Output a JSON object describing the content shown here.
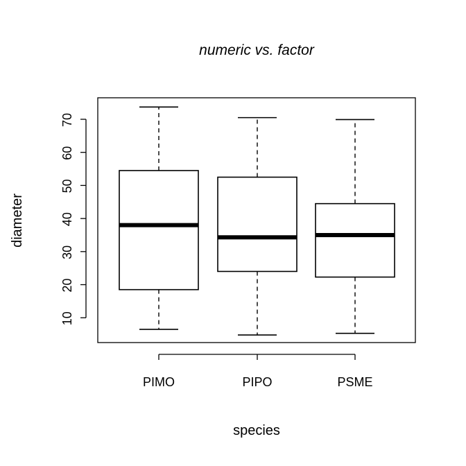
{
  "chart_data": {
    "type": "boxplot",
    "title": "numeric vs. factor",
    "xlabel": "species",
    "ylabel": "diameter",
    "categories": [
      "PIMO",
      "PIPO",
      "PSME"
    ],
    "boxes": [
      {
        "label": "PIMO",
        "min": 6.5,
        "q1": 18.5,
        "median": 38.0,
        "q3": 54.5,
        "max": 73.7
      },
      {
        "label": "PIPO",
        "min": 4.8,
        "q1": 24.0,
        "median": 34.3,
        "q3": 52.5,
        "max": 70.5
      },
      {
        "label": "PSME",
        "min": 5.3,
        "q1": 22.3,
        "median": 35.0,
        "q3": 44.5,
        "max": 69.9
      }
    ],
    "ylim": [
      2.5,
      76.5
    ],
    "yticks": [
      10,
      20,
      30,
      40,
      50,
      60,
      70
    ],
    "ytick_labels": [
      "10",
      "20",
      "30",
      "40",
      "50",
      "60",
      "70"
    ],
    "grid": false,
    "legend": "none"
  }
}
